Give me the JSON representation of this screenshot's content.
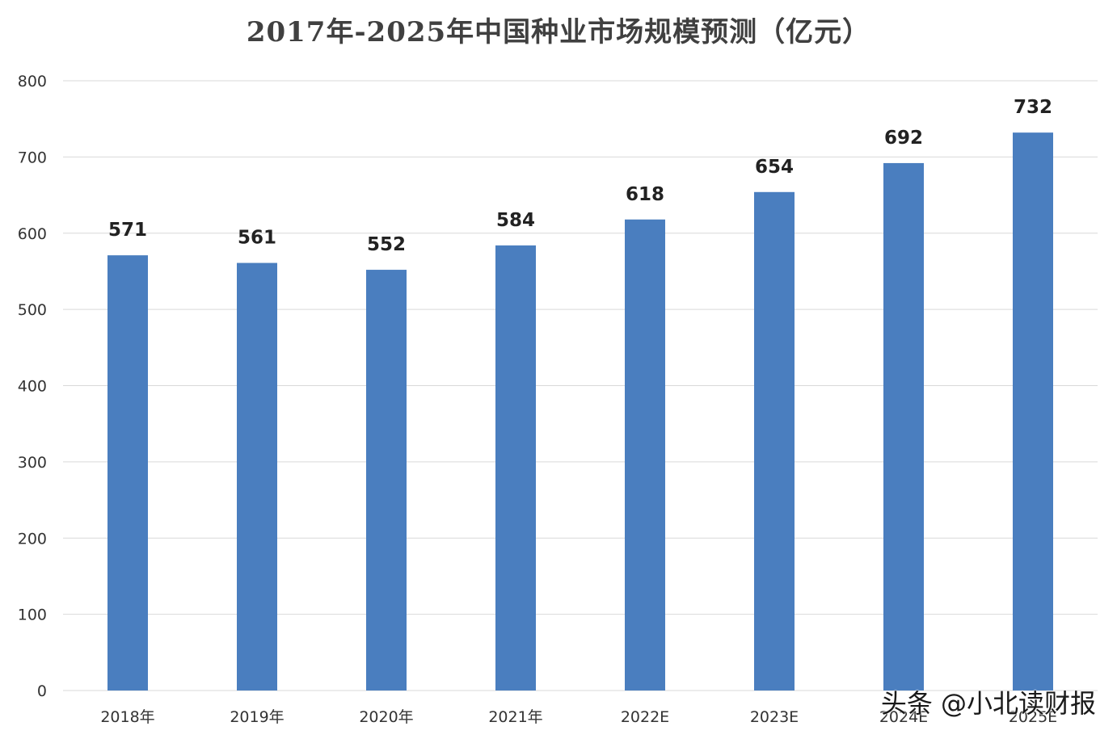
{
  "chart_data": {
    "type": "bar",
    "title": "2017年-2025年中国种业市场规模预测（亿元）",
    "categories": [
      "2018年",
      "2019年",
      "2020年",
      "2021年",
      "2022E",
      "2023E",
      "2024E",
      "2025E"
    ],
    "values": [
      571,
      561,
      552,
      584,
      618,
      654,
      692,
      732
    ],
    "data_labels": [
      "571",
      "561",
      "552",
      "584",
      "618",
      "654",
      "692",
      "732"
    ],
    "ylim": [
      0,
      800
    ],
    "yticks": [
      "0",
      "100",
      "200",
      "300",
      "400",
      "500",
      "600",
      "700",
      "800"
    ],
    "grid": true,
    "bar_color": "#4a7ebf",
    "grid_color": "#d9d9d9"
  },
  "watermark": "头条 @小北读财报"
}
